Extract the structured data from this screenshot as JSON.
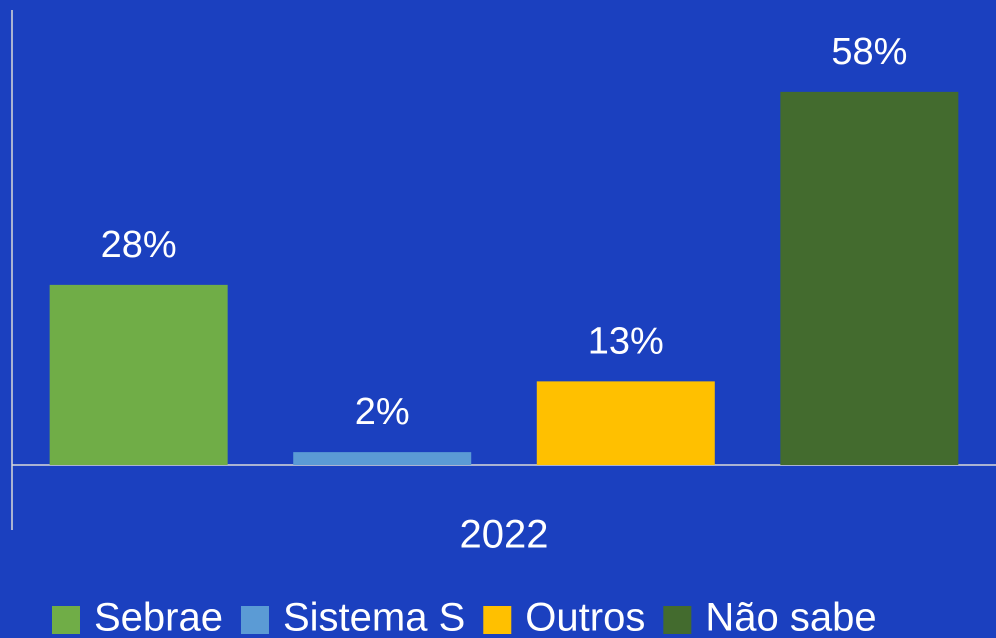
{
  "chart_data": {
    "type": "bar",
    "categories": [
      "2022"
    ],
    "series": [
      {
        "name": "Sebrae",
        "color": "#70ad47",
        "values": [
          28
        ],
        "value_labels": [
          "28%"
        ]
      },
      {
        "name": "Sistema S",
        "color": "#5b9bd5",
        "values": [
          2
        ],
        "value_labels": [
          "2%"
        ]
      },
      {
        "name": "Outros",
        "color": "#ffc000",
        "values": [
          13
        ],
        "value_labels": [
          "13%"
        ]
      },
      {
        "name": "Não sabe",
        "color": "#436b2e",
        "values": [
          58
        ],
        "value_labels": [
          "58%"
        ]
      }
    ],
    "ylim": [
      0,
      60
    ],
    "grid": false,
    "legend": "bottom"
  }
}
